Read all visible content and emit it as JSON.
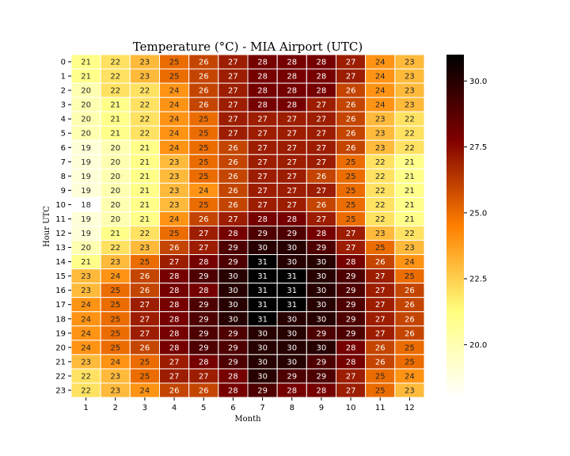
{
  "chart_data": {
    "type": "heatmap",
    "title": "Temperature (°C) - MIA Airport (UTC)",
    "xlabel": "Month",
    "ylabel": "Hour UTC",
    "x_categories": [
      "1",
      "2",
      "3",
      "4",
      "5",
      "6",
      "7",
      "8",
      "9",
      "10",
      "11",
      "12"
    ],
    "y_categories": [
      "0",
      "1",
      "2",
      "3",
      "4",
      "5",
      "6",
      "7",
      "8",
      "9",
      "10",
      "11",
      "12",
      "13",
      "14",
      "15",
      "16",
      "17",
      "18",
      "19",
      "20",
      "21",
      "22",
      "23"
    ],
    "values": [
      [
        21,
        22,
        23,
        25,
        26,
        27,
        28,
        28,
        28,
        27,
        24,
        23
      ],
      [
        21,
        22,
        23,
        25,
        26,
        27,
        28,
        28,
        28,
        27,
        24,
        23
      ],
      [
        20,
        22,
        22,
        24,
        26,
        27,
        28,
        28,
        28,
        26,
        24,
        23
      ],
      [
        20,
        21,
        22,
        24,
        26,
        27,
        28,
        28,
        27,
        26,
        24,
        23
      ],
      [
        20,
        21,
        22,
        24,
        25,
        27,
        27,
        27,
        27,
        26,
        23,
        22
      ],
      [
        20,
        21,
        22,
        24,
        25,
        27,
        27,
        27,
        27,
        26,
        23,
        22
      ],
      [
        19,
        20,
        21,
        24,
        25,
        26,
        27,
        27,
        27,
        26,
        23,
        22
      ],
      [
        19,
        20,
        21,
        23,
        25,
        26,
        27,
        27,
        27,
        25,
        22,
        21
      ],
      [
        19,
        20,
        21,
        23,
        25,
        26,
        27,
        27,
        26,
        25,
        22,
        21
      ],
      [
        19,
        20,
        21,
        23,
        24,
        26,
        27,
        27,
        27,
        25,
        22,
        21
      ],
      [
        18,
        20,
        21,
        23,
        25,
        26,
        27,
        27,
        26,
        25,
        22,
        21
      ],
      [
        19,
        20,
        21,
        24,
        26,
        27,
        28,
        28,
        27,
        25,
        22,
        21
      ],
      [
        19,
        21,
        22,
        25,
        27,
        28,
        29,
        29,
        28,
        27,
        23,
        22
      ],
      [
        20,
        22,
        23,
        26,
        27,
        29,
        30,
        30,
        29,
        27,
        25,
        23
      ],
      [
        21,
        23,
        25,
        27,
        28,
        29,
        31,
        30,
        30,
        28,
        26,
        24
      ],
      [
        23,
        24,
        26,
        28,
        29,
        30,
        31,
        31,
        30,
        29,
        27,
        25
      ],
      [
        23,
        25,
        26,
        28,
        28,
        30,
        31,
        31,
        30,
        29,
        27,
        26
      ],
      [
        24,
        25,
        27,
        28,
        29,
        30,
        31,
        31,
        30,
        29,
        27,
        26
      ],
      [
        24,
        25,
        27,
        28,
        29,
        30,
        31,
        30,
        30,
        29,
        27,
        26
      ],
      [
        24,
        25,
        27,
        28,
        29,
        29,
        30,
        30,
        29,
        29,
        27,
        26
      ],
      [
        24,
        25,
        26,
        28,
        29,
        29,
        30,
        30,
        30,
        28,
        26,
        25
      ],
      [
        23,
        24,
        25,
        27,
        28,
        29,
        30,
        30,
        29,
        28,
        26,
        25
      ],
      [
        22,
        23,
        25,
        27,
        27,
        28,
        30,
        29,
        29,
        27,
        25,
        24
      ],
      [
        22,
        23,
        24,
        26,
        26,
        28,
        29,
        28,
        28,
        27,
        25,
        23
      ]
    ],
    "colormap": "afmhot_r",
    "vmin": 18,
    "vmax": 31,
    "colorbar_ticks": [
      20.0,
      22.5,
      25.0,
      27.5,
      30.0
    ],
    "colorbar_tick_labels": [
      "20.0",
      "22.5",
      "25.0",
      "27.5",
      "30.0"
    ],
    "grid_line_color": "#ffffff"
  }
}
